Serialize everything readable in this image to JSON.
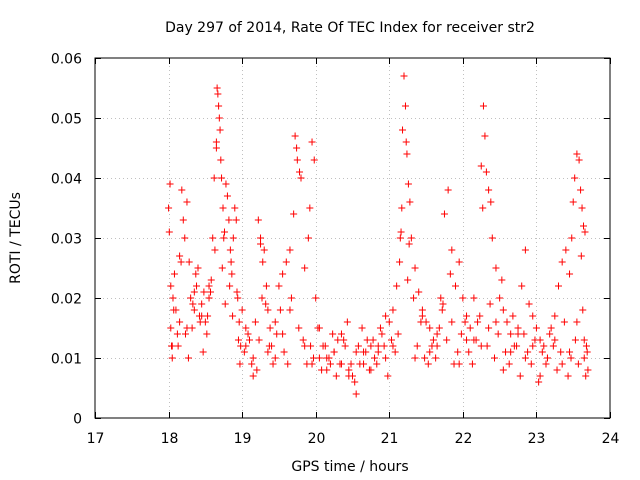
{
  "chart_data": {
    "type": "scatter",
    "title": "Day 297 of 2014, Rate Of TEC Index for receiver str2",
    "xlabel": "GPS time / hours",
    "ylabel": "ROTI / TECUs",
    "xlim": [
      17,
      24
    ],
    "ylim": [
      0,
      0.06
    ],
    "xticks": [
      17,
      18,
      19,
      20,
      21,
      22,
      23,
      24
    ],
    "xtick_labels": [
      "17",
      "18",
      "19",
      "20",
      "21",
      "22",
      "23",
      "24"
    ],
    "yticks": [
      0,
      0.01,
      0.02,
      0.03,
      0.04,
      0.05,
      0.06
    ],
    "ytick_labels": [
      "0",
      "0.01",
      "0.02",
      "0.03",
      "0.04",
      "0.05",
      "0.06"
    ],
    "grid": true,
    "marker": "plus",
    "color": "#ff0000",
    "series": [
      {
        "name": "ROTI",
        "x": [
          18.0,
          18.01,
          18.02,
          18.03,
          18.04,
          18.05,
          18.06,
          18.08,
          18.1,
          18.12,
          18.15,
          18.18,
          18.2,
          18.22,
          18.25,
          18.28,
          18.3,
          18.32,
          18.35,
          18.38,
          18.4,
          18.42,
          18.45,
          18.48,
          18.5,
          18.52,
          18.55,
          18.58,
          18.6,
          18.62,
          18.65,
          18.66,
          18.67,
          18.68,
          18.69,
          18.7,
          18.71,
          18.72,
          18.74,
          18.76,
          18.78,
          18.8,
          18.82,
          18.84,
          18.86,
          18.88,
          18.9,
          18.92,
          18.94,
          18.96,
          18.98,
          19.0,
          19.05,
          19.1,
          19.15,
          19.2,
          19.22,
          19.25,
          19.28,
          19.3,
          19.33,
          19.35,
          19.38,
          19.4,
          19.45,
          19.5,
          19.55,
          19.6,
          19.65,
          19.7,
          19.72,
          19.74,
          19.75,
          19.78,
          19.8,
          19.85,
          19.9,
          19.92,
          19.95,
          19.98,
          20.0,
          20.05,
          20.1,
          20.15,
          20.2,
          20.25,
          20.3,
          20.35,
          20.4,
          20.45,
          20.5,
          20.55,
          20.6,
          20.65,
          20.7,
          20.75,
          20.8,
          20.85,
          20.9,
          20.95,
          21.0,
          21.05,
          21.1,
          21.14,
          21.16,
          21.18,
          21.2,
          21.22,
          21.24,
          21.26,
          21.28,
          21.3,
          21.35,
          21.4,
          21.45,
          21.5,
          21.55,
          21.6,
          21.65,
          21.7,
          21.72,
          21.75,
          21.8,
          21.85,
          21.9,
          21.95,
          22.0,
          22.05,
          22.1,
          22.15,
          22.2,
          22.25,
          22.28,
          22.3,
          22.32,
          22.35,
          22.38,
          22.4,
          22.45,
          22.5,
          22.55,
          22.6,
          22.65,
          22.7,
          22.75,
          22.8,
          22.85,
          22.9,
          22.95,
          23.0,
          23.05,
          23.1,
          23.15,
          23.2,
          23.25,
          23.3,
          23.35,
          23.4,
          23.45,
          23.48,
          23.5,
          23.52,
          23.55,
          23.58,
          23.6,
          23.62,
          23.64,
          23.66,
          23.68,
          23.7,
          18.03,
          18.07,
          18.13,
          18.17,
          18.23,
          18.27,
          18.33,
          18.37,
          18.43,
          18.47,
          18.53,
          18.57,
          18.63,
          18.73,
          18.77,
          18.83,
          18.87,
          18.93,
          18.97,
          19.03,
          19.08,
          19.13,
          19.18,
          19.23,
          19.27,
          19.32,
          19.37,
          19.42,
          19.47,
          19.52,
          19.57,
          19.62,
          19.67,
          19.77,
          19.83,
          19.88,
          19.93,
          19.97,
          20.03,
          20.08,
          20.13,
          20.18,
          20.23,
          20.28,
          20.33,
          20.38,
          20.43,
          20.48,
          20.53,
          20.58,
          20.63,
          20.68,
          20.73,
          20.78,
          20.83,
          20.88,
          20.93,
          20.98,
          21.03,
          21.08,
          21.12,
          21.17,
          21.23,
          21.27,
          21.33,
          21.38,
          21.43,
          21.48,
          21.53,
          21.58,
          21.63,
          21.68,
          21.73,
          21.78,
          21.83,
          21.88,
          21.93,
          21.98,
          22.03,
          22.08,
          22.13,
          22.18,
          22.23,
          22.27,
          22.33,
          22.37,
          22.43,
          22.48,
          22.53,
          22.58,
          22.63,
          22.68,
          22.73,
          22.78,
          22.83,
          22.88,
          22.93,
          22.98,
          23.03,
          23.08,
          23.13,
          23.18,
          23.23,
          23.28,
          23.33,
          23.38,
          23.43,
          23.47,
          23.53,
          23.57,
          23.61,
          23.63,
          23.65,
          23.67,
          23.69,
          18.05,
          18.15,
          18.25,
          18.35,
          18.45,
          18.55,
          18.65,
          18.75,
          18.85,
          18.95,
          19.05,
          19.15,
          19.25,
          19.35,
          19.45,
          19.55,
          19.65,
          19.85,
          19.95,
          20.05,
          20.15,
          20.25,
          20.35,
          20.45,
          20.55,
          20.65,
          20.75,
          20.85,
          20.95,
          21.05,
          21.15,
          21.25,
          21.35,
          21.45,
          21.55,
          21.65,
          21.85,
          21.95,
          22.05,
          22.15,
          22.25,
          22.35,
          22.45,
          22.55,
          22.65,
          22.75,
          22.85,
          22.95,
          23.05,
          23.15,
          23.25,
          23.35,
          23.45,
          23.55,
          23.65
        ],
        "y": [
          0.035,
          0.031,
          0.039,
          0.015,
          0.012,
          0.01,
          0.02,
          0.024,
          0.018,
          0.014,
          0.016,
          0.038,
          0.033,
          0.03,
          0.036,
          0.026,
          0.02,
          0.015,
          0.018,
          0.022,
          0.025,
          0.017,
          0.019,
          0.021,
          0.016,
          0.014,
          0.02,
          0.023,
          0.03,
          0.04,
          0.045,
          0.055,
          0.054,
          0.052,
          0.05,
          0.048,
          0.043,
          0.04,
          0.035,
          0.031,
          0.039,
          0.037,
          0.033,
          0.028,
          0.024,
          0.03,
          0.035,
          0.033,
          0.02,
          0.016,
          0.012,
          0.018,
          0.015,
          0.013,
          0.01,
          0.008,
          0.033,
          0.03,
          0.026,
          0.028,
          0.022,
          0.018,
          0.015,
          0.012,
          0.016,
          0.022,
          0.024,
          0.026,
          0.028,
          0.034,
          0.047,
          0.045,
          0.043,
          0.041,
          0.04,
          0.025,
          0.03,
          0.035,
          0.046,
          0.043,
          0.02,
          0.015,
          0.012,
          0.01,
          0.009,
          0.011,
          0.013,
          0.014,
          0.012,
          0.008,
          0.007,
          0.004,
          0.009,
          0.011,
          0.013,
          0.012,
          0.01,
          0.011,
          0.014,
          0.017,
          0.016,
          0.018,
          0.022,
          0.026,
          0.031,
          0.048,
          0.057,
          0.052,
          0.044,
          0.039,
          0.036,
          0.03,
          0.025,
          0.021,
          0.018,
          0.016,
          0.015,
          0.013,
          0.014,
          0.02,
          0.018,
          0.034,
          0.038,
          0.028,
          0.022,
          0.026,
          0.02,
          0.017,
          0.015,
          0.013,
          0.016,
          0.042,
          0.052,
          0.047,
          0.041,
          0.038,
          0.036,
          0.03,
          0.025,
          0.02,
          0.018,
          0.016,
          0.014,
          0.012,
          0.015,
          0.022,
          0.028,
          0.019,
          0.017,
          0.015,
          0.013,
          0.012,
          0.01,
          0.015,
          0.017,
          0.022,
          0.026,
          0.028,
          0.024,
          0.03,
          0.036,
          0.04,
          0.044,
          0.043,
          0.038,
          0.035,
          0.032,
          0.031,
          0.012,
          0.008,
          0.022,
          0.018,
          0.012,
          0.026,
          0.014,
          0.01,
          0.019,
          0.024,
          0.016,
          0.011,
          0.017,
          0.021,
          0.028,
          0.025,
          0.019,
          0.022,
          0.017,
          0.021,
          0.009,
          0.011,
          0.014,
          0.009,
          0.016,
          0.013,
          0.02,
          0.019,
          0.012,
          0.009,
          0.014,
          0.018,
          0.011,
          0.009,
          0.02,
          0.015,
          0.013,
          0.009,
          0.012,
          0.01,
          0.015,
          0.008,
          0.012,
          0.01,
          0.014,
          0.007,
          0.009,
          0.013,
          0.016,
          0.009,
          0.006,
          0.012,
          0.015,
          0.011,
          0.008,
          0.013,
          0.009,
          0.015,
          0.012,
          0.007,
          0.013,
          0.011,
          0.014,
          0.035,
          0.046,
          0.029,
          0.02,
          0.012,
          0.016,
          0.01,
          0.009,
          0.012,
          0.01,
          0.015,
          0.019,
          0.013,
          0.024,
          0.009,
          0.011,
          0.014,
          0.016,
          0.011,
          0.009,
          0.013,
          0.017,
          0.035,
          0.012,
          0.019,
          0.01,
          0.014,
          0.023,
          0.011,
          0.009,
          0.017,
          0.012,
          0.007,
          0.014,
          0.011,
          0.009,
          0.013,
          0.006,
          0.011,
          0.009,
          0.014,
          0.012,
          0.008,
          0.011,
          0.016,
          0.007,
          0.01,
          0.013,
          0.009,
          0.027,
          0.018,
          0.01,
          0.007,
          0.011,
          0.012,
          0.027,
          0.015,
          0.021,
          0.017,
          0.022,
          0.046,
          0.03,
          0.026,
          0.013,
          0.012,
          0.007,
          0.029,
          0.011,
          0.01,
          0.014,
          0.018,
          0.012,
          0.009,
          0.01,
          0.008,
          0.011,
          0.009,
          0.007,
          0.011,
          0.009,
          0.008,
          0.012,
          0.01,
          0.012,
          0.03,
          0.023,
          0.01,
          0.017,
          0.011,
          0.012,
          0.016,
          0.009,
          0.013,
          0.02,
          0.012,
          0.015,
          0.016,
          0.008,
          0.011,
          0.014,
          0.01,
          0.012,
          0.007,
          0.01,
          0.013,
          0.009,
          0.011,
          0.016,
          0.013
        ]
      }
    ]
  }
}
